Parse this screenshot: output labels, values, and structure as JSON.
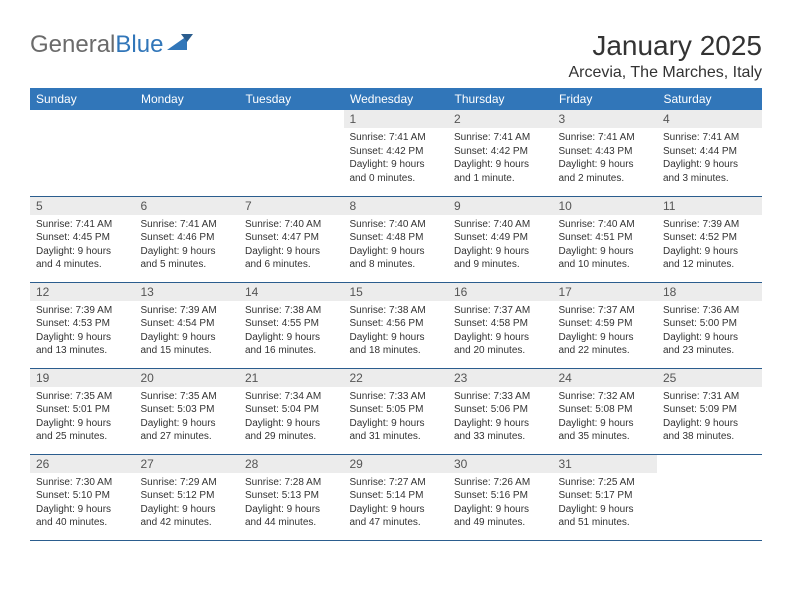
{
  "logo": {
    "word1": "General",
    "word2": "Blue"
  },
  "title": "January 2025",
  "location": "Arcevia, The Marches, Italy",
  "colors": {
    "header_bg": "#3176b9",
    "header_text": "#ffffff",
    "daynum_bg": "#ececec",
    "row_border": "#2b5d8e",
    "logo_gray": "#6b6b6b",
    "logo_blue": "#3176b9"
  },
  "weekdays": [
    "Sunday",
    "Monday",
    "Tuesday",
    "Wednesday",
    "Thursday",
    "Friday",
    "Saturday"
  ],
  "weeks": [
    [
      {
        "n": "",
        "sr": "",
        "ss": "",
        "d1": "",
        "d2": ""
      },
      {
        "n": "",
        "sr": "",
        "ss": "",
        "d1": "",
        "d2": ""
      },
      {
        "n": "",
        "sr": "",
        "ss": "",
        "d1": "",
        "d2": ""
      },
      {
        "n": "1",
        "sr": "Sunrise: 7:41 AM",
        "ss": "Sunset: 4:42 PM",
        "d1": "Daylight: 9 hours",
        "d2": "and 0 minutes."
      },
      {
        "n": "2",
        "sr": "Sunrise: 7:41 AM",
        "ss": "Sunset: 4:42 PM",
        "d1": "Daylight: 9 hours",
        "d2": "and 1 minute."
      },
      {
        "n": "3",
        "sr": "Sunrise: 7:41 AM",
        "ss": "Sunset: 4:43 PM",
        "d1": "Daylight: 9 hours",
        "d2": "and 2 minutes."
      },
      {
        "n": "4",
        "sr": "Sunrise: 7:41 AM",
        "ss": "Sunset: 4:44 PM",
        "d1": "Daylight: 9 hours",
        "d2": "and 3 minutes."
      }
    ],
    [
      {
        "n": "5",
        "sr": "Sunrise: 7:41 AM",
        "ss": "Sunset: 4:45 PM",
        "d1": "Daylight: 9 hours",
        "d2": "and 4 minutes."
      },
      {
        "n": "6",
        "sr": "Sunrise: 7:41 AM",
        "ss": "Sunset: 4:46 PM",
        "d1": "Daylight: 9 hours",
        "d2": "and 5 minutes."
      },
      {
        "n": "7",
        "sr": "Sunrise: 7:40 AM",
        "ss": "Sunset: 4:47 PM",
        "d1": "Daylight: 9 hours",
        "d2": "and 6 minutes."
      },
      {
        "n": "8",
        "sr": "Sunrise: 7:40 AM",
        "ss": "Sunset: 4:48 PM",
        "d1": "Daylight: 9 hours",
        "d2": "and 8 minutes."
      },
      {
        "n": "9",
        "sr": "Sunrise: 7:40 AM",
        "ss": "Sunset: 4:49 PM",
        "d1": "Daylight: 9 hours",
        "d2": "and 9 minutes."
      },
      {
        "n": "10",
        "sr": "Sunrise: 7:40 AM",
        "ss": "Sunset: 4:51 PM",
        "d1": "Daylight: 9 hours",
        "d2": "and 10 minutes."
      },
      {
        "n": "11",
        "sr": "Sunrise: 7:39 AM",
        "ss": "Sunset: 4:52 PM",
        "d1": "Daylight: 9 hours",
        "d2": "and 12 minutes."
      }
    ],
    [
      {
        "n": "12",
        "sr": "Sunrise: 7:39 AM",
        "ss": "Sunset: 4:53 PM",
        "d1": "Daylight: 9 hours",
        "d2": "and 13 minutes."
      },
      {
        "n": "13",
        "sr": "Sunrise: 7:39 AM",
        "ss": "Sunset: 4:54 PM",
        "d1": "Daylight: 9 hours",
        "d2": "and 15 minutes."
      },
      {
        "n": "14",
        "sr": "Sunrise: 7:38 AM",
        "ss": "Sunset: 4:55 PM",
        "d1": "Daylight: 9 hours",
        "d2": "and 16 minutes."
      },
      {
        "n": "15",
        "sr": "Sunrise: 7:38 AM",
        "ss": "Sunset: 4:56 PM",
        "d1": "Daylight: 9 hours",
        "d2": "and 18 minutes."
      },
      {
        "n": "16",
        "sr": "Sunrise: 7:37 AM",
        "ss": "Sunset: 4:58 PM",
        "d1": "Daylight: 9 hours",
        "d2": "and 20 minutes."
      },
      {
        "n": "17",
        "sr": "Sunrise: 7:37 AM",
        "ss": "Sunset: 4:59 PM",
        "d1": "Daylight: 9 hours",
        "d2": "and 22 minutes."
      },
      {
        "n": "18",
        "sr": "Sunrise: 7:36 AM",
        "ss": "Sunset: 5:00 PM",
        "d1": "Daylight: 9 hours",
        "d2": "and 23 minutes."
      }
    ],
    [
      {
        "n": "19",
        "sr": "Sunrise: 7:35 AM",
        "ss": "Sunset: 5:01 PM",
        "d1": "Daylight: 9 hours",
        "d2": "and 25 minutes."
      },
      {
        "n": "20",
        "sr": "Sunrise: 7:35 AM",
        "ss": "Sunset: 5:03 PM",
        "d1": "Daylight: 9 hours",
        "d2": "and 27 minutes."
      },
      {
        "n": "21",
        "sr": "Sunrise: 7:34 AM",
        "ss": "Sunset: 5:04 PM",
        "d1": "Daylight: 9 hours",
        "d2": "and 29 minutes."
      },
      {
        "n": "22",
        "sr": "Sunrise: 7:33 AM",
        "ss": "Sunset: 5:05 PM",
        "d1": "Daylight: 9 hours",
        "d2": "and 31 minutes."
      },
      {
        "n": "23",
        "sr": "Sunrise: 7:33 AM",
        "ss": "Sunset: 5:06 PM",
        "d1": "Daylight: 9 hours",
        "d2": "and 33 minutes."
      },
      {
        "n": "24",
        "sr": "Sunrise: 7:32 AM",
        "ss": "Sunset: 5:08 PM",
        "d1": "Daylight: 9 hours",
        "d2": "and 35 minutes."
      },
      {
        "n": "25",
        "sr": "Sunrise: 7:31 AM",
        "ss": "Sunset: 5:09 PM",
        "d1": "Daylight: 9 hours",
        "d2": "and 38 minutes."
      }
    ],
    [
      {
        "n": "26",
        "sr": "Sunrise: 7:30 AM",
        "ss": "Sunset: 5:10 PM",
        "d1": "Daylight: 9 hours",
        "d2": "and 40 minutes."
      },
      {
        "n": "27",
        "sr": "Sunrise: 7:29 AM",
        "ss": "Sunset: 5:12 PM",
        "d1": "Daylight: 9 hours",
        "d2": "and 42 minutes."
      },
      {
        "n": "28",
        "sr": "Sunrise: 7:28 AM",
        "ss": "Sunset: 5:13 PM",
        "d1": "Daylight: 9 hours",
        "d2": "and 44 minutes."
      },
      {
        "n": "29",
        "sr": "Sunrise: 7:27 AM",
        "ss": "Sunset: 5:14 PM",
        "d1": "Daylight: 9 hours",
        "d2": "and 47 minutes."
      },
      {
        "n": "30",
        "sr": "Sunrise: 7:26 AM",
        "ss": "Sunset: 5:16 PM",
        "d1": "Daylight: 9 hours",
        "d2": "and 49 minutes."
      },
      {
        "n": "31",
        "sr": "Sunrise: 7:25 AM",
        "ss": "Sunset: 5:17 PM",
        "d1": "Daylight: 9 hours",
        "d2": "and 51 minutes."
      },
      {
        "n": "",
        "sr": "",
        "ss": "",
        "d1": "",
        "d2": ""
      }
    ]
  ]
}
